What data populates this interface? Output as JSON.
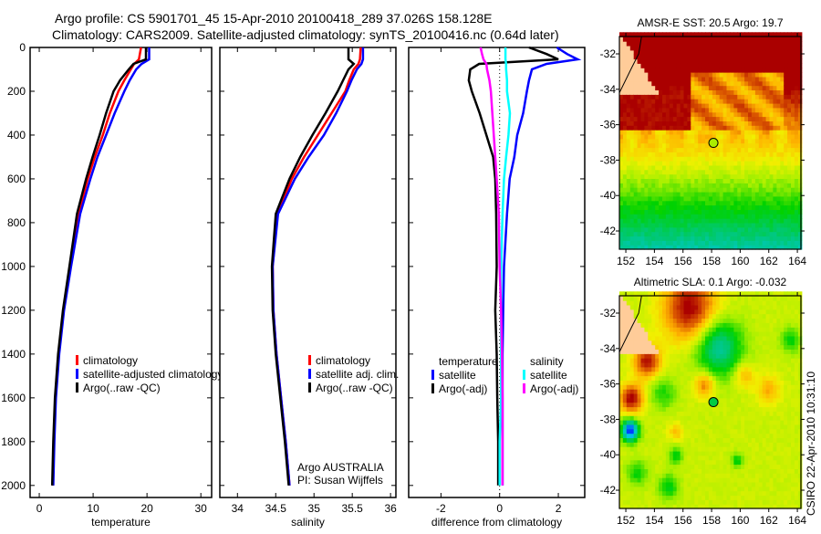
{
  "title_lines": [
    "Argo profile: CS 5901701_45 15-Apr-2010 20100418_289 37.026S 158.128E",
    "Climatology: CARS2009. Satellite-adjusted climatology: synTS_20100416.nc (0.64d later)"
  ],
  "footer_text": "CSIRO 22-Apr-2010 10:31:10",
  "colors": {
    "red": "#ff0000",
    "blue": "#0000ff",
    "black": "#000000",
    "cyan": "#00ffff",
    "magenta": "#ff00ff"
  },
  "chart_data": [
    {
      "type": "line",
      "xlabel": "temperature",
      "ylabel": "",
      "xlim": [
        -1.7,
        32
      ],
      "ylim": [
        0,
        2055
      ],
      "y_reversed": true,
      "xticks": [
        "0",
        "10",
        "20",
        "30"
      ],
      "xtick_values": [
        0,
        10,
        20,
        30
      ],
      "yticks": [
        "0",
        "200",
        "400",
        "600",
        "800",
        "1000",
        "1200",
        "1400",
        "1600",
        "1800",
        "2000"
      ],
      "ytick_values": [
        0,
        200,
        400,
        600,
        800,
        1000,
        1200,
        1400,
        1600,
        1800,
        2000
      ],
      "depth": [
        0,
        54,
        75,
        100,
        150,
        200,
        300,
        400,
        500,
        600,
        760,
        1000,
        1200,
        1400,
        1600,
        1800,
        2000
      ],
      "series": [
        {
          "name": "climatology",
          "color": "#ff0000",
          "values": [
            18.9,
            18.5,
            17.6,
            17.0,
            15.8,
            14.7,
            13.1,
            11.8,
            10.3,
            9.0,
            7.3,
            5.8,
            4.5,
            3.6,
            3.0,
            2.7,
            2.5
          ]
        },
        {
          "name": "satellite-adjusted climatology",
          "color": "#0000ff",
          "values": [
            20.4,
            20.4,
            19.0,
            18.0,
            16.8,
            15.8,
            14.0,
            12.4,
            10.8,
            9.5,
            7.6,
            5.9,
            4.6,
            3.7,
            3.1,
            2.8,
            2.6
          ]
        },
        {
          "name": "Argo(..raw -QC)",
          "color": "#000000",
          "values": [
            19.8,
            19.8,
            17.5,
            16.6,
            15.0,
            13.8,
            12.4,
            11.2,
            9.9,
            8.7,
            7.0,
            5.6,
            4.4,
            3.5,
            2.9,
            2.6,
            2.4
          ]
        }
      ],
      "legend": [
        "climatology",
        "satellite-adjusted climatology",
        "Argo(..raw -QC)"
      ]
    },
    {
      "type": "line",
      "xlabel": "salinity",
      "xlim": [
        33.77,
        36.07
      ],
      "ylim": [
        0,
        2055
      ],
      "y_reversed": true,
      "xticks": [
        "34",
        "34.5",
        "35",
        "35.5",
        "36"
      ],
      "xtick_values": [
        34,
        34.5,
        35,
        35.5,
        36
      ],
      "depth": [
        0,
        54,
        75,
        100,
        150,
        200,
        300,
        400,
        500,
        600,
        760,
        1000,
        1200,
        1400,
        1600,
        1800,
        2000
      ],
      "series": [
        {
          "name": "climatology",
          "color": "#ff0000",
          "values": [
            35.61,
            35.6,
            35.58,
            35.52,
            35.46,
            35.41,
            35.23,
            35.05,
            34.87,
            34.71,
            34.52,
            34.46,
            34.47,
            34.51,
            34.57,
            34.63,
            34.68
          ]
        },
        {
          "name": "satellite adj. clim.",
          "color": "#0000ff",
          "values": [
            35.64,
            35.64,
            35.62,
            35.56,
            35.49,
            35.43,
            35.29,
            35.13,
            34.93,
            34.75,
            34.53,
            34.46,
            34.47,
            34.51,
            34.57,
            34.63,
            34.68
          ]
        },
        {
          "name": "Argo(..raw -QC)",
          "color": "#000000",
          "values": [
            35.45,
            35.45,
            35.52,
            35.45,
            35.38,
            35.31,
            35.15,
            34.98,
            34.82,
            34.68,
            34.5,
            34.45,
            34.46,
            34.5,
            34.56,
            34.62,
            34.67
          ]
        }
      ],
      "legend": [
        "climatology",
        "satellite adj. clim.",
        "Argo(..raw -QC)"
      ],
      "annotation": [
        "Argo AUSTRALIA",
        "PI: Susan Wijffels"
      ]
    },
    {
      "type": "line",
      "xlabel": "difference from climatology",
      "xlim": [
        -3.1,
        2.9
      ],
      "ylim": [
        0,
        2055
      ],
      "y_reversed": true,
      "xticks": [
        "-2",
        "0",
        "2"
      ],
      "xtick_values": [
        -2,
        0,
        2
      ],
      "depth": [
        0,
        30,
        54,
        75,
        100,
        150,
        200,
        300,
        400,
        500,
        600,
        760,
        1000,
        1200,
        1400,
        1600,
        1800,
        2000
      ],
      "series": [
        {
          "name": "temperature satellite",
          "color": "#0000ff",
          "values": [
            1.95,
            2.3,
            2.66,
            1.6,
            1.1,
            1.0,
            0.93,
            0.8,
            0.6,
            0.5,
            0.34,
            0.25,
            0.15,
            0.12,
            0.1,
            0.1,
            0.1,
            0.1
          ]
        },
        {
          "name": "temperature Argo(-adj)",
          "color": "#000000",
          "values": [
            1.0,
            1.6,
            2.0,
            -0.7,
            -1.0,
            -1.05,
            -0.95,
            -0.68,
            -0.45,
            -0.22,
            -0.15,
            -0.12,
            -0.1,
            -0.15,
            -0.1,
            -0.08,
            -0.05,
            -0.05
          ]
        },
        {
          "name": "salinity satellite",
          "color": "#00ffff",
          "values": [
            0.2,
            0.2,
            0.2,
            0.22,
            0.22,
            0.25,
            0.25,
            0.35,
            0.3,
            0.22,
            0.15,
            0.1,
            0.05,
            0.05,
            0.05,
            0.05,
            0.0,
            0.0
          ]
        },
        {
          "name": "salinity Argo(-adj)",
          "color": "#ff00ff",
          "values": [
            -0.65,
            -0.6,
            -0.55,
            -0.45,
            -0.43,
            -0.35,
            -0.3,
            -0.25,
            -0.2,
            -0.15,
            -0.1,
            -0.03,
            0.0,
            0.05,
            0.08,
            0.1,
            0.1,
            0.1
          ]
        }
      ],
      "legend_headers": [
        "temperature",
        "salinity"
      ],
      "legend": [
        "satellite",
        "Argo(-adj)",
        "satellite",
        "Argo(-adj)"
      ]
    },
    {
      "type": "heatmap",
      "title": "AMSR-E SST: 20.5 Argo: 19.7",
      "xlim": [
        151.55,
        164.25
      ],
      "ylim": [
        -43.03,
        -31.02
      ],
      "xticks": [
        "152",
        "154",
        "156",
        "158",
        "160",
        "162",
        "164"
      ],
      "xtick_values": [
        152,
        154,
        156,
        158,
        160,
        162,
        164
      ],
      "yticks": [
        "-32",
        "-34",
        "-36",
        "-38",
        "-40",
        "-42"
      ],
      "ytick_values": [
        -32,
        -34,
        -36,
        -38,
        -40,
        -42
      ],
      "argo_position": {
        "lat": -37.026,
        "lon": 158.128
      }
    },
    {
      "type": "heatmap",
      "title": "Altimetric SLA: 0.1 Argo: -0.032",
      "xlim": [
        151.55,
        164.25
      ],
      "ylim": [
        -43.03,
        -31.02
      ],
      "xticks": [
        "152",
        "154",
        "156",
        "158",
        "160",
        "162",
        "164"
      ],
      "xtick_values": [
        152,
        154,
        156,
        158,
        160,
        162,
        164
      ],
      "yticks": [
        "-32",
        "-34",
        "-36",
        "-38",
        "-40",
        "-42"
      ],
      "ytick_values": [
        -32,
        -34,
        -36,
        -38,
        -40,
        -42
      ],
      "argo_position": {
        "lat": -37.026,
        "lon": 158.128
      }
    }
  ]
}
